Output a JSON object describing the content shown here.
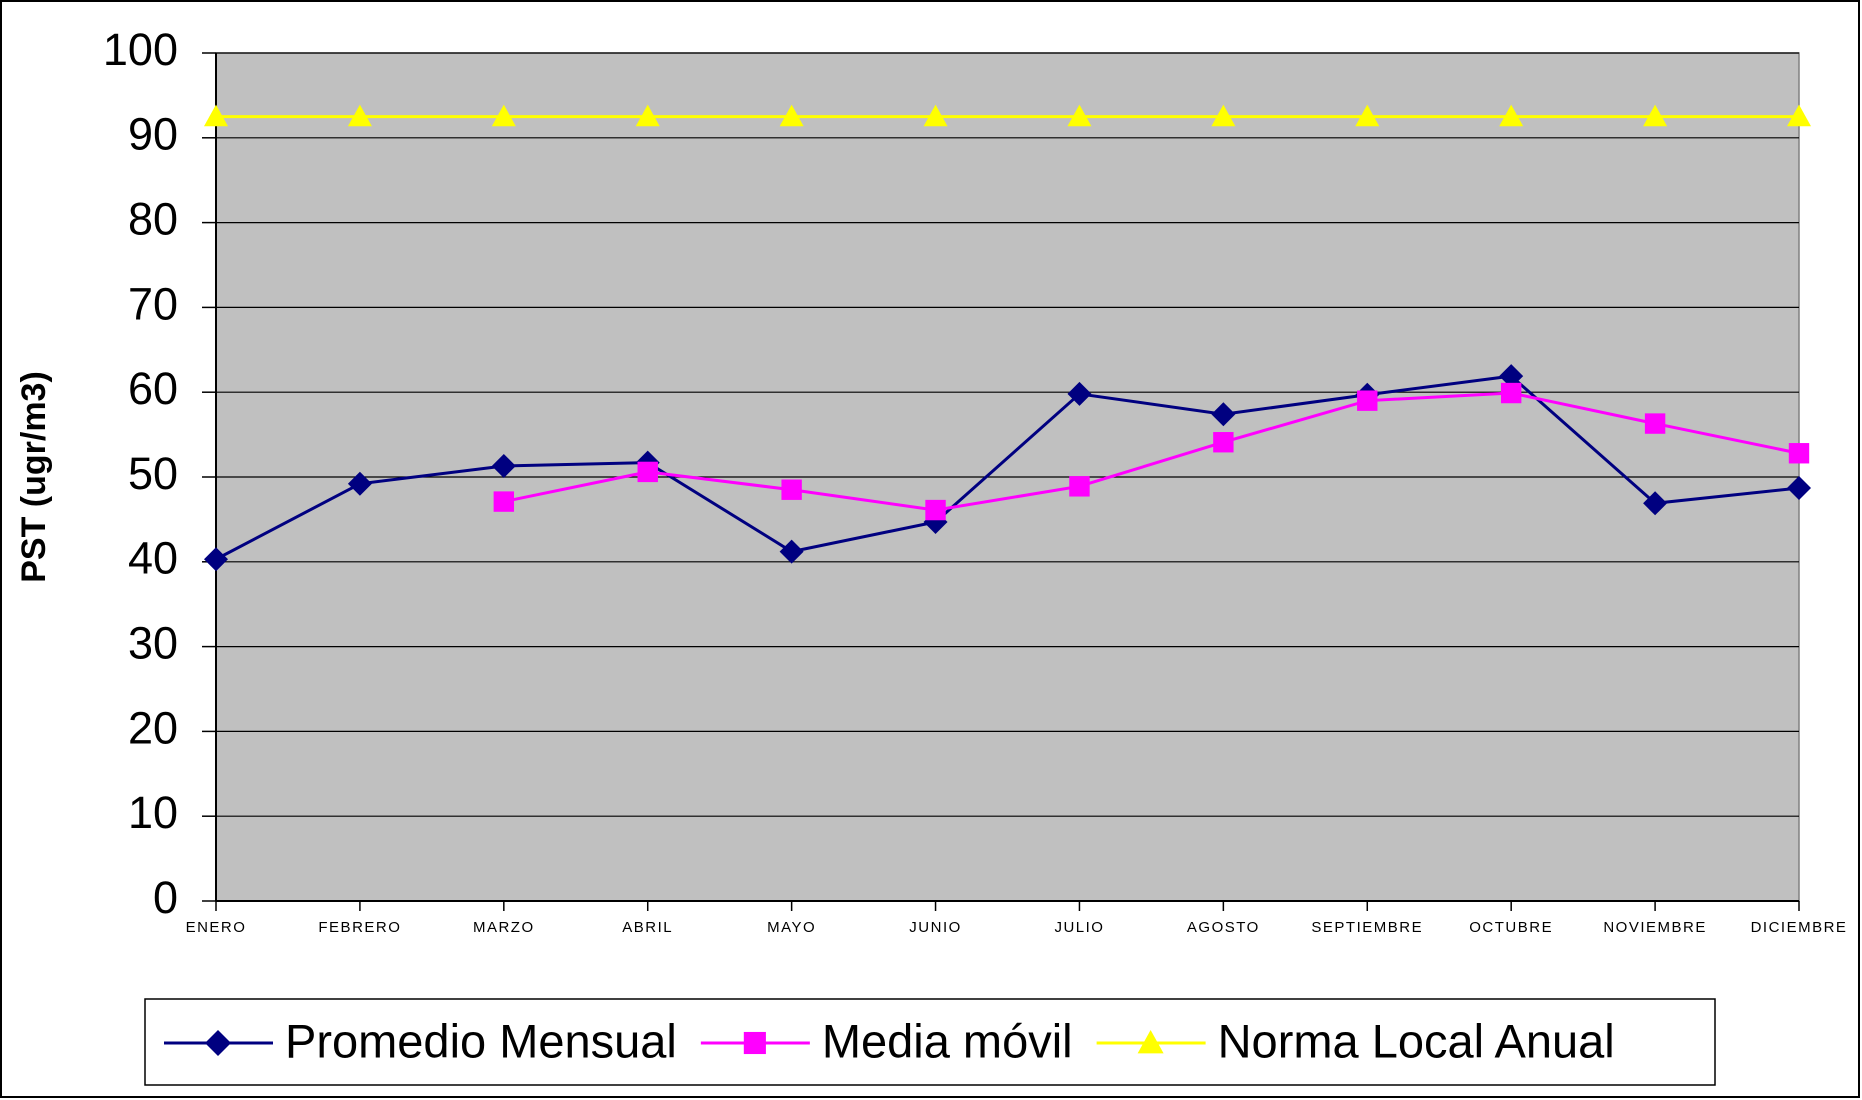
{
  "chart_data": {
    "type": "line",
    "y_label": "PST (ugr/m3)",
    "categories": [
      "ENERO",
      "FEBRERO",
      "MARZO",
      "ABRIL",
      "MAYO",
      "JUNIO",
      "JULIO",
      "AGOSTO",
      "SEPTIEMBRE",
      "OCTUBRE",
      "NOVIEMBRE",
      "DICIEMBRE"
    ],
    "series": [
      {
        "name": "Promedio Mensual",
        "color": "#000080",
        "marker": "diamond",
        "values": [
          40.3,
          49.2,
          51.3,
          51.7,
          41.2,
          44.7,
          59.8,
          57.4,
          59.7,
          61.9,
          46.9,
          48.7
        ]
      },
      {
        "name": "Media móvil",
        "color": "#ff00ff",
        "marker": "square",
        "values": [
          null,
          null,
          47.1,
          50.6,
          48.5,
          46.1,
          48.9,
          54.1,
          59.0,
          59.9,
          56.3,
          52.8
        ]
      },
      {
        "name": "Norma Local Anual",
        "color": "#ffff00",
        "marker": "triangle",
        "values": [
          92.5,
          92.5,
          92.5,
          92.5,
          92.5,
          92.5,
          92.5,
          92.5,
          92.5,
          92.5,
          92.5,
          92.5
        ]
      }
    ],
    "ylim": [
      0,
      100
    ],
    "yticks": [
      0,
      10,
      20,
      30,
      40,
      50,
      60,
      70,
      80,
      90,
      100
    ],
    "grid": true,
    "legend": "bottom",
    "plot_background": "#c0c0c0"
  }
}
